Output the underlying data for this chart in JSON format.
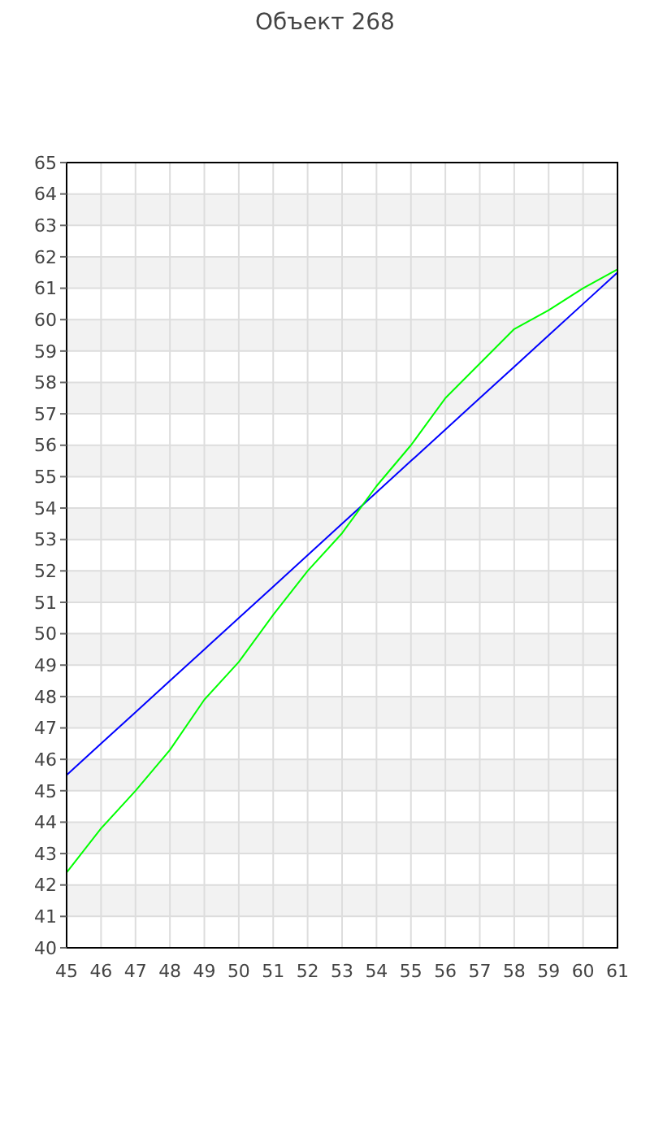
{
  "chart_data": {
    "type": "line",
    "title": "Объект 268",
    "x": [
      45,
      46,
      47,
      48,
      49,
      50,
      51,
      52,
      53,
      54,
      55,
      56,
      57,
      58,
      59,
      60,
      61
    ],
    "series": [
      {
        "color": "#0000ff",
        "values": [
          45.5,
          46.5,
          47.5,
          48.5,
          49.5,
          50.5,
          51.5,
          52.5,
          53.5,
          54.5,
          55.5,
          56.5,
          57.5,
          58.5,
          59.5,
          60.5,
          61.5
        ]
      },
      {
        "color": "#00ff00",
        "values": [
          42.4,
          43.8,
          45.0,
          46.3,
          47.9,
          49.1,
          50.6,
          52.0,
          53.2,
          54.7,
          56.0,
          57.5,
          58.6,
          59.7,
          60.3,
          61.0,
          61.6
        ]
      }
    ],
    "xlim": [
      45,
      61
    ],
    "xticks": [
      45,
      46,
      47,
      48,
      49,
      50,
      51,
      52,
      53,
      54,
      55,
      56,
      57,
      58,
      59,
      60,
      61
    ],
    "ylim": [
      40,
      65
    ],
    "yticks": [
      40,
      41,
      42,
      43,
      44,
      45,
      46,
      47,
      48,
      49,
      50,
      51,
      52,
      53,
      54,
      55,
      56,
      57,
      58,
      59,
      60,
      61,
      62,
      63,
      64,
      65
    ],
    "grid": true,
    "marker": "none",
    "line_style": "solid"
  }
}
